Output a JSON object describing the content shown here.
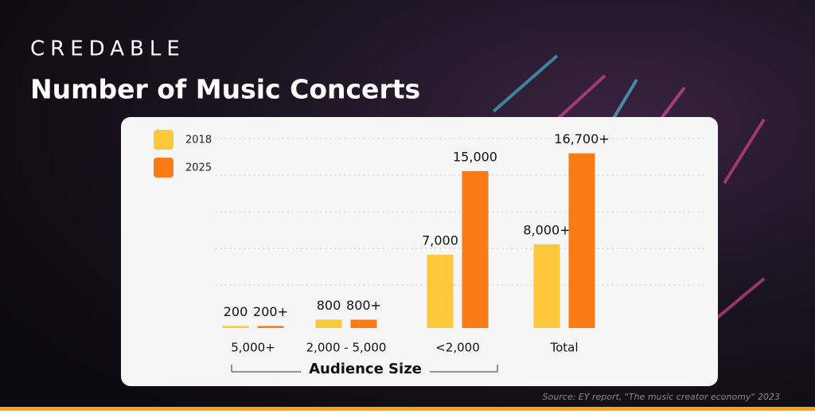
{
  "brand": "CREDABLE",
  "chart_data": {
    "type": "bar",
    "title": "Number of Music Concerts",
    "categories": [
      "5,000+",
      "2,000 - 5,000",
      "<2,000",
      "Total"
    ],
    "x_label": "Audience Size",
    "series": [
      {
        "name": "2018",
        "color": "#ffc83d",
        "values": [
          200,
          800,
          7000,
          8000
        ],
        "value_labels": [
          "200",
          "800",
          "7,000",
          "8,000+"
        ]
      },
      {
        "name": "2025",
        "color": "#fb7c16",
        "values": [
          200,
          800,
          15000,
          16700
        ],
        "value_labels": [
          "200+",
          "800+",
          "15,000",
          "16,700+"
        ]
      }
    ],
    "ylim": [
      0,
      17500
    ],
    "source": "Source: EY report, \"The music creator economy\" 2023"
  }
}
